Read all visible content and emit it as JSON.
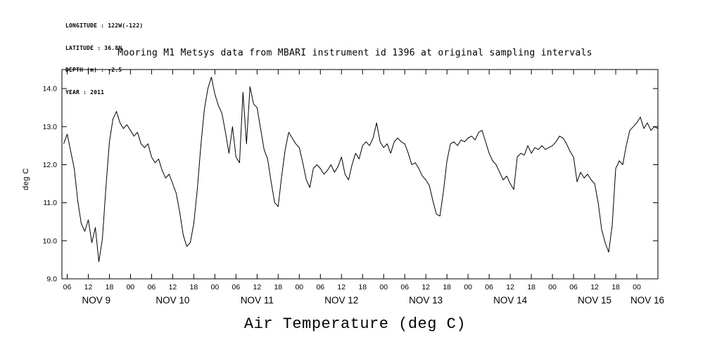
{
  "header": {
    "longitude": "LONGITUDE : 122W(-122)",
    "latitude": "LATITUDE : 36.8N",
    "depth": "DEPTH (m) : -2.5",
    "year": "YEAR : 2011"
  },
  "chart_data": {
    "type": "line",
    "title": "Mooring M1 Metsys data from MBARI instrument id 1396 at original sampling intervals",
    "xlabel": "Air Temperature (deg C)",
    "ylabel": "deg C",
    "line_color": "#000000",
    "background": "#ffffff",
    "grid": false,
    "x_unit": "hours since 2011-11-09 00:00",
    "xlim": [
      4.5,
      174
    ],
    "ylim": [
      9.0,
      14.5
    ],
    "x_start": 5,
    "x_step": 1,
    "values": [
      12.55,
      12.8,
      12.35,
      11.9,
      11.05,
      10.45,
      10.25,
      10.55,
      9.95,
      10.35,
      9.45,
      10.05,
      11.4,
      12.6,
      13.2,
      13.4,
      13.1,
      12.95,
      13.05,
      12.9,
      12.75,
      12.85,
      12.55,
      12.45,
      12.55,
      12.2,
      12.05,
      12.15,
      11.85,
      11.65,
      11.75,
      11.5,
      11.25,
      10.75,
      10.15,
      9.85,
      9.95,
      10.45,
      11.35,
      12.5,
      13.45,
      14.0,
      14.3,
      13.85,
      13.55,
      13.35,
      12.85,
      12.3,
      13.0,
      12.2,
      12.05,
      13.9,
      12.55,
      14.05,
      13.6,
      13.5,
      12.95,
      12.4,
      12.15,
      11.55,
      11.0,
      10.9,
      11.7,
      12.4,
      12.85,
      12.7,
      12.55,
      12.45,
      12.05,
      11.6,
      11.4,
      11.9,
      12.0,
      11.9,
      11.75,
      11.85,
      12.0,
      11.8,
      11.95,
      12.2,
      11.75,
      11.6,
      12.0,
      12.3,
      12.15,
      12.5,
      12.6,
      12.5,
      12.7,
      13.1,
      12.6,
      12.45,
      12.55,
      12.3,
      12.6,
      12.7,
      12.6,
      12.55,
      12.3,
      12.0,
      12.05,
      11.9,
      11.7,
      11.6,
      11.45,
      11.05,
      10.7,
      10.65,
      11.3,
      12.1,
      12.55,
      12.6,
      12.5,
      12.65,
      12.6,
      12.7,
      12.75,
      12.65,
      12.85,
      12.9,
      12.6,
      12.3,
      12.1,
      12.0,
      11.8,
      11.6,
      11.7,
      11.5,
      11.35,
      12.2,
      12.3,
      12.25,
      12.5,
      12.3,
      12.45,
      12.4,
      12.5,
      12.4,
      12.45,
      12.5,
      12.6,
      12.75,
      12.7,
      12.55,
      12.35,
      12.2,
      11.55,
      11.8,
      11.65,
      11.75,
      11.6,
      11.5,
      11.0,
      10.3,
      9.95,
      9.7,
      10.4,
      11.9,
      12.1,
      12.0,
      12.5,
      12.9,
      13.0,
      13.1,
      13.25,
      12.95,
      13.1,
      12.9,
      13.0,
      12.95
    ],
    "x_ticks": {
      "hours": [
        6,
        12,
        18,
        24,
        30,
        36,
        42,
        48,
        54,
        60,
        66,
        72,
        78,
        84,
        90,
        96,
        102,
        108,
        114,
        120,
        126,
        132,
        138,
        144,
        150,
        156,
        162,
        168
      ],
      "labels": [
        "06",
        "12",
        "18",
        "00",
        "06",
        "12",
        "18",
        "00",
        "06",
        "12",
        "18",
        "00",
        "06",
        "12",
        "18",
        "00",
        "06",
        "12",
        "18",
        "00",
        "06",
        "12",
        "18",
        "00",
        "06",
        "12",
        "18",
        "00"
      ]
    },
    "y_ticks": {
      "values": [
        9.0,
        10.0,
        11.0,
        12.0,
        13.0,
        14.0
      ],
      "labels": [
        "9.0",
        "10.0",
        "11.0",
        "12.0",
        "13.0",
        "14.0"
      ]
    },
    "day_labels": [
      "NOV 9",
      "NOV 10",
      "NOV 11",
      "NOV 12",
      "NOV 13",
      "NOV 14",
      "NOV 15",
      "NOV 16"
    ],
    "day_start_hours": [
      0,
      24,
      48,
      72,
      96,
      120,
      144,
      168
    ]
  }
}
